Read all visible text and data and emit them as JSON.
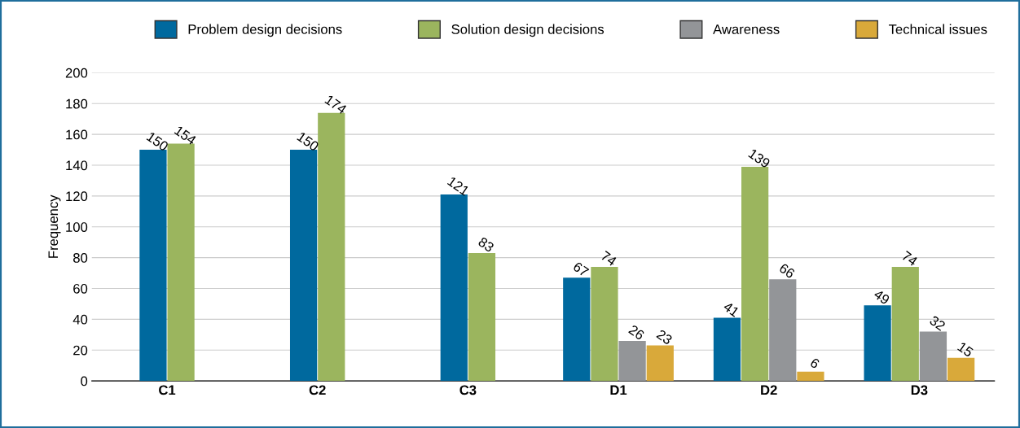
{
  "chart_data": {
    "type": "bar",
    "ylabel": "Frequency",
    "categories": [
      "C1",
      "C2",
      "C3",
      "D1",
      "D2",
      "D3"
    ],
    "series": [
      {
        "name": "Problem design decisions",
        "color": "#00699e",
        "values": [
          150,
          150,
          121,
          67,
          41,
          49
        ]
      },
      {
        "name": "Solution design decisions",
        "color": "#9bb55e",
        "values": [
          154,
          174,
          83,
          74,
          139,
          74
        ]
      },
      {
        "name": "Awareness",
        "color": "#939598",
        "values": [
          null,
          null,
          null,
          26,
          66,
          32
        ]
      },
      {
        "name": "Technical issues",
        "color": "#d9a93a",
        "values": [
          null,
          null,
          null,
          23,
          6,
          15
        ]
      }
    ],
    "ylim": [
      0,
      200
    ],
    "yticks": [
      0,
      20,
      40,
      60,
      80,
      100,
      120,
      140,
      160,
      180,
      200
    ],
    "grid": "y",
    "legend": "top",
    "data_labels": true
  }
}
